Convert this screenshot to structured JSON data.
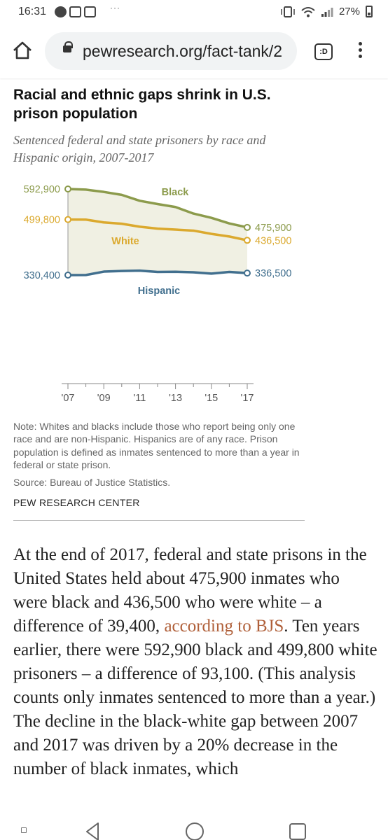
{
  "status_bar": {
    "time": "16:31",
    "battery": "27%",
    "icons": [
      "facebook-icon",
      "message-icon",
      "message-icon",
      "more-dots-icon",
      "vibrate-icon",
      "wifi-icon",
      "signal-icon",
      "battery-icon"
    ]
  },
  "browser": {
    "url": "pewresearch.org/fact-tank/2",
    "tab_label": ":D"
  },
  "chart": {
    "title": "Racial and ethnic gaps shrink in U.S. prison population",
    "subtitle": "Sentenced federal and state prisoners by race and Hispanic origin, 2007-2017",
    "note": "Note: Whites and blacks include those who report being only one race and are non-Hispanic. Hispanics are of any race. Prison population is defined as inmates sentenced to more than a year in federal or state prison.",
    "source": "Source: Bureau of Justice Statistics.",
    "credit": "PEW RESEARCH CENTER"
  },
  "chart_data": {
    "type": "line",
    "x": [
      2007,
      2008,
      2009,
      2010,
      2011,
      2012,
      2013,
      2014,
      2015,
      2016,
      2017
    ],
    "x_tick_labels": [
      "'07",
      "'09",
      "'11",
      "'13",
      "'15",
      "'17"
    ],
    "ylim": [
      0,
      600000
    ],
    "grid": false,
    "colors": {
      "Black": "#8c9b4c",
      "White": "#dba92e",
      "Hispanic": "#416f8e",
      "fill": "#f0f0e3"
    },
    "series": [
      {
        "name": "Black",
        "values": [
          592900,
          591000,
          584000,
          575000,
          557000,
          547000,
          538000,
          518000,
          505000,
          488000,
          475900
        ],
        "start_label": "592,900",
        "end_label": "475,900"
      },
      {
        "name": "White",
        "values": [
          499800,
          499500,
          491000,
          487000,
          478000,
          472000,
          469000,
          466000,
          456000,
          448000,
          436500
        ],
        "start_label": "499,800",
        "end_label": "436,500"
      },
      {
        "name": "Hispanic",
        "values": [
          330400,
          330600,
          341000,
          343000,
          344000,
          340000,
          340500,
          339000,
          335000,
          340000,
          336500
        ],
        "start_label": "330,400",
        "end_label": "336,500"
      }
    ]
  },
  "article": {
    "p1_before_link": "At the end of 2017, federal and state prisons in the United States held about 475,900 inmates who were black and 436,500 who were white – a difference of 39,400, ",
    "link_text": "according to BJS",
    "p1_after_link": ". Ten years earlier, there were 592,900 black and 499,800 white prisoners – a difference of 93,100. (This analysis counts only inmates sentenced to more than a year.) The decline in the black-white gap between 2007 and 2017 was driven by a 20% decrease in the number of black inmates, which"
  }
}
